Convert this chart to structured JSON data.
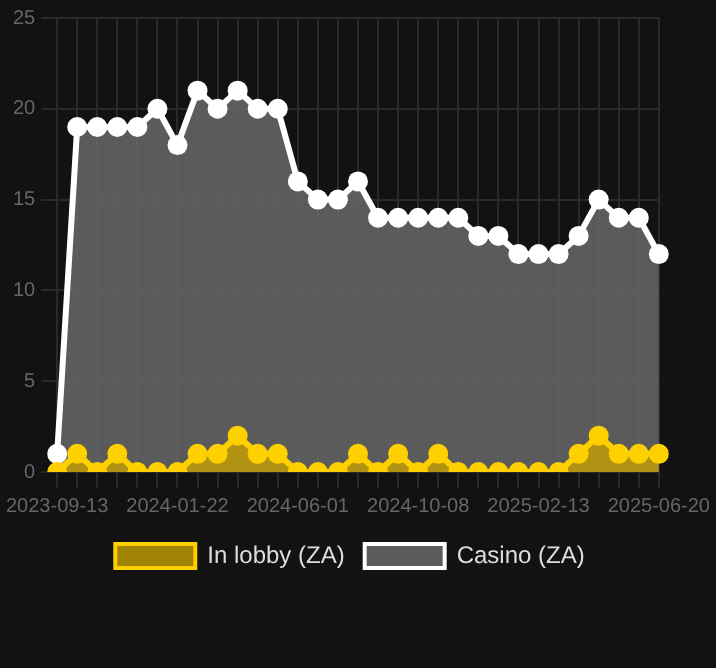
{
  "chart_data": {
    "type": "area",
    "categories": [
      "2023-09-13",
      null,
      null,
      null,
      null,
      null,
      "2024-01-22",
      null,
      null,
      null,
      null,
      null,
      "2024-06-01",
      null,
      null,
      null,
      null,
      null,
      "2024-10-08",
      null,
      null,
      null,
      null,
      null,
      "2025-02-13",
      null,
      null,
      null,
      null,
      null,
      "2025-06-20"
    ],
    "series": [
      {
        "name": "In lobby (ZA)",
        "color": "#ffd000",
        "values": [
          0,
          1,
          0,
          1,
          0,
          0,
          0,
          1,
          1,
          2,
          1,
          1,
          0,
          0,
          0,
          1,
          0,
          1,
          0,
          1,
          0,
          0,
          0,
          0,
          0,
          0,
          1,
          2,
          1,
          1,
          1
        ]
      },
      {
        "name": "Casino (ZA)",
        "color": "#ffffff",
        "values": [
          1,
          19,
          19,
          19,
          19,
          20,
          18,
          21,
          20,
          21,
          20,
          20,
          16,
          15,
          15,
          16,
          14,
          14,
          14,
          14,
          14,
          13,
          13,
          12,
          12,
          12,
          13,
          15,
          14,
          14,
          12
        ]
      }
    ],
    "ylim": [
      0,
      25
    ],
    "yticks": [
      0,
      5,
      10,
      15,
      20,
      25
    ],
    "grid": true,
    "legend": "bottom",
    "marker": "circle"
  }
}
